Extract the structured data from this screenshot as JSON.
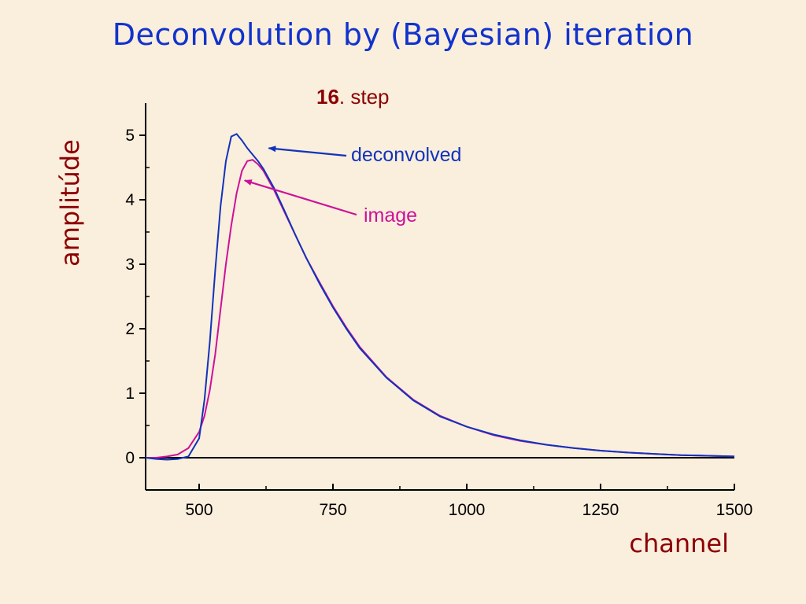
{
  "slide": {
    "title": "Deconvolution by (Bayesian) iteration"
  },
  "chart_data": {
    "type": "line",
    "subtitle_number": "16",
    "subtitle_word": ". step",
    "xlabel": "channel",
    "ylabel": "amplitúde",
    "xlim": [
      400,
      1500
    ],
    "ylim": [
      -0.5,
      5.5
    ],
    "xticks": [
      500,
      750,
      1000,
      1250,
      1500
    ],
    "yticks": [
      0,
      1,
      2,
      3,
      4,
      5
    ],
    "grid": false,
    "series": [
      {
        "name": "image",
        "color": "#CC1199",
        "x": [
          400,
          420,
          440,
          460,
          480,
          500,
          510,
          520,
          530,
          540,
          550,
          560,
          570,
          580,
          590,
          600,
          610,
          620,
          640,
          660,
          680,
          700,
          725,
          750,
          775,
          800,
          850,
          900,
          950,
          1000,
          1050,
          1100,
          1150,
          1200,
          1250,
          1300,
          1350,
          1400,
          1450,
          1500
        ],
        "y": [
          0.0,
          0.0,
          0.02,
          0.05,
          0.15,
          0.4,
          0.65,
          1.05,
          1.6,
          2.3,
          3.0,
          3.6,
          4.1,
          4.45,
          4.6,
          4.62,
          4.55,
          4.45,
          4.15,
          3.8,
          3.45,
          3.1,
          2.72,
          2.35,
          2.02,
          1.72,
          1.25,
          0.9,
          0.65,
          0.48,
          0.35,
          0.26,
          0.2,
          0.15,
          0.11,
          0.08,
          0.06,
          0.04,
          0.03,
          0.02
        ]
      },
      {
        "name": "deconvolved",
        "color": "#1133BB",
        "x": [
          400,
          420,
          440,
          460,
          480,
          500,
          510,
          520,
          530,
          540,
          550,
          560,
          570,
          580,
          590,
          600,
          610,
          620,
          640,
          660,
          680,
          700,
          725,
          750,
          775,
          800,
          850,
          900,
          950,
          1000,
          1050,
          1100,
          1150,
          1200,
          1250,
          1300,
          1350,
          1400,
          1450,
          1500
        ],
        "y": [
          0.0,
          -0.02,
          -0.03,
          -0.02,
          0.02,
          0.3,
          0.9,
          1.8,
          2.9,
          3.9,
          4.6,
          4.98,
          5.02,
          4.92,
          4.8,
          4.7,
          4.6,
          4.48,
          4.18,
          3.82,
          3.45,
          3.1,
          2.7,
          2.33,
          2.0,
          1.7,
          1.24,
          0.89,
          0.64,
          0.48,
          0.36,
          0.27,
          0.2,
          0.15,
          0.11,
          0.08,
          0.06,
          0.04,
          0.03,
          0.02
        ]
      }
    ],
    "annotations": [
      {
        "text": "deconvolved",
        "color": "#1133BB",
        "target_x": 630,
        "target_y": 4.8
      },
      {
        "text": "image",
        "color": "#CC1199",
        "target_x": 585,
        "target_y": 4.3
      }
    ]
  }
}
